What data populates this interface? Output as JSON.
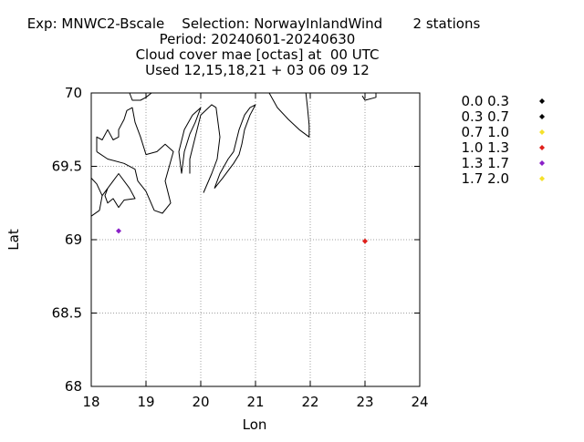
{
  "chart_data": {
    "type": "scatter",
    "title_lines": [
      "Exp: MNWC2-Bscale    Selection: NorwayInlandWind       2 stations",
      "Period: 20240601-20240630",
      "Cloud cover mae [octas] at  00 UTC",
      "Used 12,15,18,21 + 03 06 09 12"
    ],
    "xlabel": "Lon",
    "ylabel": "Lat",
    "xlim": [
      18,
      24
    ],
    "ylim": [
      68,
      70
    ],
    "xticks": [
      18,
      19,
      20,
      21,
      22,
      23,
      24
    ],
    "yticks": [
      68,
      68.5,
      69,
      69.5,
      70
    ],
    "xtick_labels": [
      "18",
      "19",
      "20",
      "21",
      "22",
      "23",
      "24"
    ],
    "ytick_labels": [
      "68",
      "68.5",
      "69",
      "69.5",
      "70"
    ],
    "grid": true,
    "legend_position": "right",
    "legend": [
      {
        "label": "0.0 0.3",
        "color": "#000000"
      },
      {
        "label": "0.3 0.7",
        "color": "#000000"
      },
      {
        "label": "0.7 1.0",
        "color": "#f5e12b"
      },
      {
        "label": "1.0 1.3",
        "color": "#e0201b"
      },
      {
        "label": "1.3 1.7",
        "color": "#8a20c8"
      },
      {
        "label": "1.7 2.0",
        "color": "#f5e12b"
      }
    ],
    "points": [
      {
        "lon": 18.5,
        "lat": 69.06,
        "color": "#8a20c8"
      },
      {
        "lon": 23.0,
        "lat": 68.99,
        "color": "#e0201b"
      }
    ],
    "coastlines": [
      [
        [
          18.0,
          69.16
        ],
        [
          18.15,
          69.2
        ],
        [
          18.2,
          69.3
        ],
        [
          18.3,
          69.35
        ],
        [
          18.25,
          69.3
        ],
        [
          18.3,
          69.25
        ],
        [
          18.4,
          69.28
        ],
        [
          18.5,
          69.22
        ],
        [
          18.6,
          69.27
        ],
        [
          18.8,
          69.28
        ],
        [
          18.7,
          69.35
        ],
        [
          18.5,
          69.45
        ],
        [
          18.4,
          69.4
        ],
        [
          18.2,
          69.3
        ],
        [
          18.1,
          69.38
        ],
        [
          18.0,
          69.42
        ]
      ],
      [
        [
          18.1,
          69.6
        ],
        [
          18.3,
          69.55
        ],
        [
          18.6,
          69.52
        ],
        [
          18.8,
          69.48
        ],
        [
          18.85,
          69.4
        ],
        [
          19.0,
          69.33
        ],
        [
          19.15,
          69.2
        ],
        [
          19.3,
          69.18
        ],
        [
          19.45,
          69.25
        ],
        [
          19.35,
          69.4
        ],
        [
          19.5,
          69.6
        ],
        [
          19.35,
          69.65
        ],
        [
          19.2,
          69.6
        ],
        [
          19.0,
          69.58
        ],
        [
          18.9,
          69.7
        ],
        [
          18.8,
          69.8
        ],
        [
          18.75,
          69.9
        ],
        [
          18.65,
          69.88
        ],
        [
          18.6,
          69.82
        ],
        [
          18.5,
          69.75
        ],
        [
          18.5,
          69.7
        ],
        [
          18.4,
          69.68
        ],
        [
          18.3,
          69.75
        ],
        [
          18.2,
          69.68
        ],
        [
          18.1,
          69.7
        ],
        [
          18.1,
          69.6
        ]
      ],
      [
        [
          18.7,
          70.0
        ],
        [
          18.75,
          69.95
        ],
        [
          18.9,
          69.95
        ],
        [
          19.0,
          69.97
        ],
        [
          19.1,
          70.0
        ]
      ],
      [
        [
          19.65,
          69.45
        ],
        [
          19.7,
          69.6
        ],
        [
          19.8,
          69.72
        ],
        [
          19.9,
          69.8
        ],
        [
          20.0,
          69.9
        ],
        [
          19.85,
          69.85
        ],
        [
          19.7,
          69.75
        ],
        [
          19.6,
          69.6
        ],
        [
          19.65,
          69.45
        ]
      ],
      [
        [
          20.05,
          69.32
        ],
        [
          20.2,
          69.45
        ],
        [
          20.3,
          69.55
        ],
        [
          20.35,
          69.7
        ],
        [
          20.28,
          69.9
        ],
        [
          20.2,
          69.92
        ],
        [
          20.0,
          69.85
        ],
        [
          19.9,
          69.7
        ],
        [
          19.8,
          69.55
        ],
        [
          19.8,
          69.45
        ]
      ],
      [
        [
          20.25,
          69.35
        ],
        [
          20.35,
          69.45
        ],
        [
          20.5,
          69.55
        ],
        [
          20.6,
          69.6
        ],
        [
          20.7,
          69.75
        ],
        [
          20.8,
          69.85
        ],
        [
          20.9,
          69.9
        ],
        [
          21.0,
          69.92
        ],
        [
          20.9,
          69.85
        ],
        [
          20.8,
          69.75
        ],
        [
          20.75,
          69.65
        ],
        [
          20.7,
          69.58
        ],
        [
          20.6,
          69.52
        ],
        [
          20.4,
          69.42
        ],
        [
          20.25,
          69.35
        ]
      ],
      [
        [
          21.25,
          70.0
        ],
        [
          21.4,
          69.9
        ],
        [
          21.6,
          69.82
        ],
        [
          21.8,
          69.75
        ],
        [
          21.98,
          69.7
        ],
        [
          21.98,
          69.78
        ],
        [
          21.95,
          69.9
        ],
        [
          21.92,
          70.0
        ]
      ],
      [
        [
          22.95,
          69.98
        ],
        [
          23.0,
          69.95
        ],
        [
          23.2,
          69.97
        ],
        [
          23.2,
          70.0
        ]
      ]
    ]
  }
}
